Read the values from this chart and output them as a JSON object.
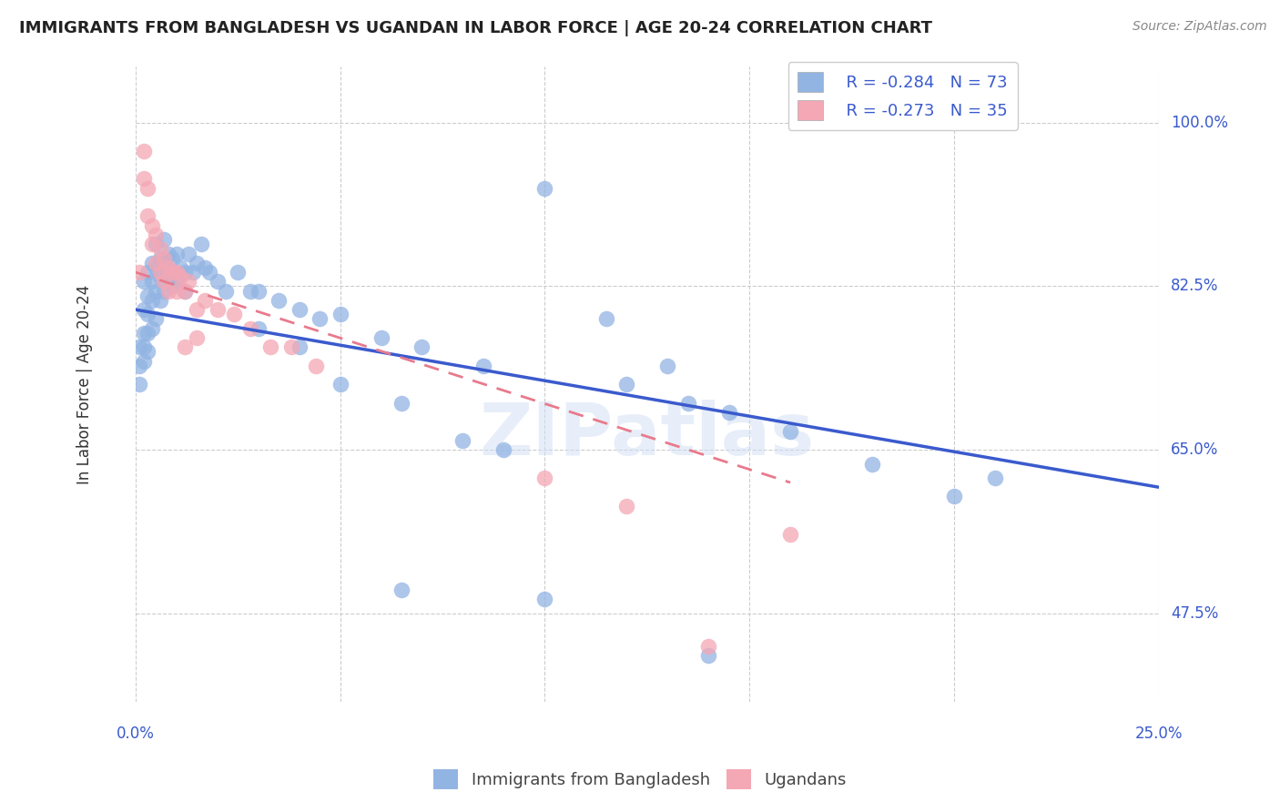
{
  "title": "IMMIGRANTS FROM BANGLADESH VS UGANDAN IN LABOR FORCE | AGE 20-24 CORRELATION CHART",
  "source": "Source: ZipAtlas.com",
  "ylabel": "In Labor Force | Age 20-24",
  "ylabel_ticks": [
    "100.0%",
    "82.5%",
    "65.0%",
    "47.5%"
  ],
  "xlim": [
    0.0,
    0.25
  ],
  "ylim": [
    0.38,
    1.06
  ],
  "yticks": [
    1.0,
    0.825,
    0.65,
    0.475
  ],
  "xticks": [
    0.0,
    0.05,
    0.1,
    0.15,
    0.2,
    0.25
  ],
  "blue_color": "#92b4e3",
  "pink_color": "#f4a7b4",
  "blue_line_color": "#3a5acd",
  "pink_line_color": "#e87a8d",
  "legend_r_blue": "R = -0.284",
  "legend_n_blue": "N = 73",
  "legend_r_pink": "R = -0.273",
  "legend_n_pink": "N = 35",
  "watermark": "ZIPatlas",
  "blue_scatter_x": [
    0.001,
    0.001,
    0.001,
    0.002,
    0.002,
    0.002,
    0.002,
    0.002,
    0.003,
    0.003,
    0.003,
    0.003,
    0.003,
    0.004,
    0.004,
    0.004,
    0.004,
    0.005,
    0.005,
    0.005,
    0.005,
    0.006,
    0.006,
    0.006,
    0.007,
    0.007,
    0.007,
    0.008,
    0.008,
    0.009,
    0.009,
    0.01,
    0.01,
    0.011,
    0.012,
    0.012,
    0.013,
    0.014,
    0.015,
    0.016,
    0.017,
    0.018,
    0.02,
    0.022,
    0.025,
    0.028,
    0.03,
    0.035,
    0.04,
    0.045,
    0.05,
    0.06,
    0.07,
    0.085,
    0.1,
    0.115,
    0.13,
    0.145,
    0.16,
    0.18,
    0.2,
    0.21,
    0.12,
    0.135,
    0.03,
    0.04,
    0.05,
    0.065,
    0.08,
    0.09,
    0.065,
    0.1,
    0.14
  ],
  "blue_scatter_y": [
    0.76,
    0.74,
    0.72,
    0.83,
    0.8,
    0.775,
    0.76,
    0.745,
    0.84,
    0.815,
    0.795,
    0.775,
    0.755,
    0.85,
    0.83,
    0.81,
    0.78,
    0.87,
    0.845,
    0.82,
    0.79,
    0.855,
    0.835,
    0.81,
    0.875,
    0.85,
    0.82,
    0.86,
    0.835,
    0.855,
    0.825,
    0.86,
    0.83,
    0.845,
    0.84,
    0.82,
    0.86,
    0.84,
    0.85,
    0.87,
    0.845,
    0.84,
    0.83,
    0.82,
    0.84,
    0.82,
    0.82,
    0.81,
    0.8,
    0.79,
    0.795,
    0.77,
    0.76,
    0.74,
    0.93,
    0.79,
    0.74,
    0.69,
    0.67,
    0.635,
    0.6,
    0.62,
    0.72,
    0.7,
    0.78,
    0.76,
    0.72,
    0.7,
    0.66,
    0.65,
    0.5,
    0.49,
    0.43
  ],
  "pink_scatter_x": [
    0.001,
    0.002,
    0.002,
    0.003,
    0.003,
    0.004,
    0.004,
    0.005,
    0.005,
    0.006,
    0.006,
    0.007,
    0.007,
    0.008,
    0.008,
    0.009,
    0.01,
    0.01,
    0.011,
    0.012,
    0.013,
    0.015,
    0.017,
    0.02,
    0.024,
    0.028,
    0.033,
    0.038,
    0.044,
    0.012,
    0.015,
    0.1,
    0.12,
    0.16,
    0.14
  ],
  "pink_scatter_y": [
    0.84,
    0.97,
    0.94,
    0.93,
    0.9,
    0.89,
    0.87,
    0.88,
    0.85,
    0.865,
    0.84,
    0.855,
    0.83,
    0.845,
    0.82,
    0.84,
    0.84,
    0.82,
    0.835,
    0.82,
    0.83,
    0.8,
    0.81,
    0.8,
    0.795,
    0.78,
    0.76,
    0.76,
    0.74,
    0.76,
    0.77,
    0.62,
    0.59,
    0.56,
    0.44
  ],
  "blue_trend_x": [
    0.0,
    0.25
  ],
  "blue_trend_y": [
    0.8,
    0.61
  ],
  "pink_trend_x": [
    0.0,
    0.16
  ],
  "pink_trend_y": [
    0.84,
    0.615
  ],
  "bg_color": "#ffffff",
  "grid_color": "#cccccc",
  "bottom_legend_labels": [
    "Immigrants from Bangladesh",
    "Ugandans"
  ]
}
